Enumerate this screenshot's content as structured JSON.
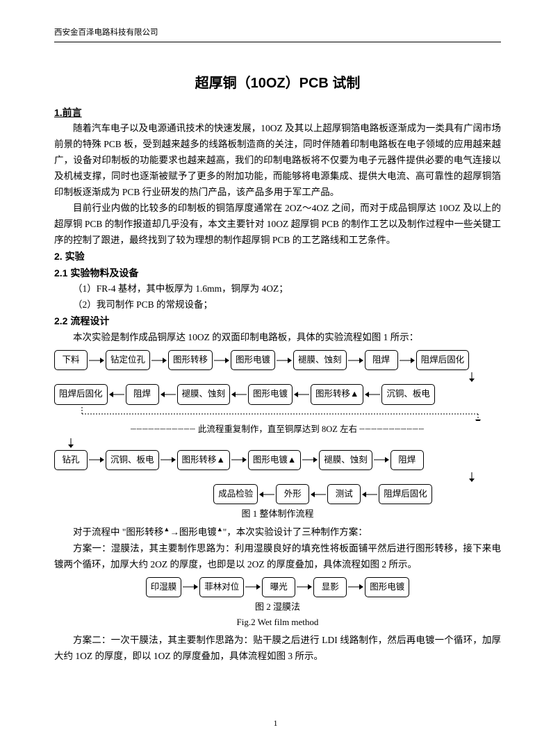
{
  "header": {
    "company": "西安金百泽电路科技有限公司"
  },
  "title": "超厚铜（10OZ）PCB 试制",
  "sections": {
    "s1": "1.前言",
    "p1": "随着汽车电子以及电源通讯技术的快速发展，10OZ 及其以上超厚铜箔电路板逐渐成为一类具有广阔市场前景的特殊 PCB 板，受到越来越多的线路板制造商的关注，同时伴随着印制电路板在电子领域的应用越来越广，设备对印制板的功能要求也越来越高，我们的印制电路板将不仅要为电子元器件提供必要的电气连接以及机械支撑，同时也逐渐被赋予了更多的附加功能，而能够将电源集成、提供大电流、高可靠性的超厚铜箔印制板逐渐成为 PCB 行业研发的热门产品，该产品多用于军工产品。",
    "p2": "目前行业内做的比较多的印制板的铜箔厚度通常在 2OZ～4OZ 之间，而对于成品铜厚达 10OZ 及以上的超厚铜 PCB 的制作报道却几乎没有，本文主要针对 10OZ 超厚铜 PCB 的制作工艺以及制作过程中一些关键工序的控制了跟进，最终找到了较为理想的制作超厚铜 PCB 的工艺路线和工艺条件。",
    "s2": "2. 实验",
    "s2_1": "2.1 实验物料及设备",
    "m1": "（1）FR-4 基材，其中板厚为 1.6mm，铜厚为 4OZ；",
    "m2": "（2）我司制作 PCB 的常规设备；",
    "s2_2": "2.2 流程设计",
    "p3": "本次实验是制作成品铜厚达 10OZ 的双面印制电路板，具体的实验流程如图 1 所示：",
    "p4_a": "对于流程中 \"图形转移",
    "p4_b": "→图形电镀",
    "p4_c": "\"，本次实验设计了三种制作方案：",
    "p5": "方案一：湿膜法，其主要制作思路为：利用湿膜良好的填充性将板面铺平然后进行图形转移，接下来电镀两个循环，加厚大约 2OZ 的厚度，也即是以 2OZ 的厚度叠加，具体流程如图 2 所示。",
    "p6": "方案二：一次干膜法，其主要制作思路为：贴干膜之后进行 LDI 线路制作，然后再电镀一个循环，加厚大约 1OZ 的厚度，即以 1OZ 的厚度叠加，具体流程如图 3 所示。"
  },
  "flowchart1": {
    "row1": [
      "下料",
      "钻定位孔",
      "图形转移",
      "图形电镀",
      "褪膜、蚀刻",
      "阻焊",
      "阻焊后固化"
    ],
    "row2": [
      "阻焊后固化",
      "阻焊",
      "褪膜、蚀刻",
      "图形电镀",
      "图形转移▲",
      "沉铜、板电"
    ],
    "note": "此流程重复制作，直至铜厚达到 8OZ 左右",
    "row3": [
      "钻孔",
      "沉铜、板电",
      "图形转移▲",
      "图形电镀▲",
      "褪膜、蚀刻",
      "阻焊"
    ],
    "row4": [
      "成品检验",
      "外形",
      "测试",
      "阻焊后固化"
    ],
    "caption": "图 1  整体制作流程"
  },
  "flowchart2": {
    "row": [
      "印湿膜",
      "菲林对位",
      "曝光",
      "显影",
      "图形电镀"
    ],
    "caption_cn": "图 2  湿膜法",
    "caption_en": "Fig.2 Wet film method"
  },
  "page": "1",
  "style": {
    "box_border": "#000000",
    "box_radius": 5,
    "arrow_len": 18,
    "font_body": 13.5,
    "font_box": 12.5
  }
}
